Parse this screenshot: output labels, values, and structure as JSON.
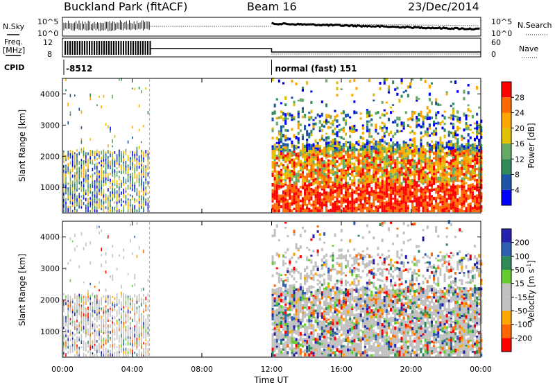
{
  "header": {
    "site": "Buckland Park (fitACF)",
    "beam": "Beam 16",
    "date": "23/Dec/2014"
  },
  "strip_labels": {
    "nsky": "N.Sky",
    "nsearch": "N.Search",
    "freq_line1": "Freq.",
    "freq_line2": "[MHz]",
    "nave": "Nave",
    "cpid": "CPID"
  },
  "noise_axis": {
    "left_top": "10^5",
    "left_bottom": "10^0",
    "right_top": "10^5",
    "right_bottom": "10^0"
  },
  "freq_axis": {
    "left_top": "12",
    "left_bottom": "8",
    "right_top": "60",
    "right_bottom": "0"
  },
  "cpid_segments": [
    {
      "time": "00:00",
      "label": "-8512"
    },
    {
      "time": "12:00",
      "label": "normal (fast) 151"
    }
  ],
  "colors": {
    "power_scale": [
      "#0000ff",
      "#1e54a8",
      "#2e8b57",
      "#66a866",
      "#e0c000",
      "#ffa500",
      "#ff6a00",
      "#ff0000"
    ],
    "velocity_scale": [
      "#2222aa",
      "#2e5eb0",
      "#2e8b57",
      "#66cc33",
      "#c0c0c0",
      "#c0c0c0",
      "#ffa500",
      "#ff6600",
      "#ff0000"
    ]
  },
  "chart_data": [
    {
      "type": "heatmap",
      "panel": "power",
      "ylabel": "Slant Range [km]",
      "yticks": [
        "1000",
        "2000",
        "3000",
        "4000"
      ],
      "ylim": [
        180,
        4500
      ],
      "xlim": [
        "00:00",
        "24:00"
      ],
      "colorbar_label": "Power [dB]",
      "colorbar_ticks": [
        "4",
        "8",
        "12",
        "16",
        "20",
        "24",
        "28"
      ],
      "colorbar_range": [
        0,
        32
      ],
      "data_intervals": [
        {
          "start": "00:00",
          "end": "05:00",
          "mode": "-8512"
        },
        {
          "start": "12:00",
          "end": "24:00",
          "mode": "normal (fast) 151"
        }
      ]
    },
    {
      "type": "heatmap",
      "panel": "velocity",
      "ylabel": "Slant Range [km]",
      "yticks": [
        "1000",
        "2000",
        "3000",
        "4000"
      ],
      "ylim": [
        180,
        4500
      ],
      "xlim": [
        "00:00",
        "24:00"
      ],
      "xlabel": "Time UT",
      "xticks": [
        "00:00",
        "04:00",
        "08:00",
        "12:00",
        "16:00",
        "20:00",
        "00:00"
      ],
      "colorbar_label": "Velocity [m s",
      "colorbar_label_sup": "-1",
      "colorbar_label_close": "]",
      "colorbar_ticks": [
        "200",
        "100",
        "50",
        "15",
        "-15",
        "-50",
        "-100",
        "-200"
      ],
      "data_intervals": [
        {
          "start": "00:00",
          "end": "05:00",
          "mode": "-8512"
        },
        {
          "start": "12:00",
          "end": "24:00",
          "mode": "normal (fast) 151"
        }
      ]
    }
  ]
}
